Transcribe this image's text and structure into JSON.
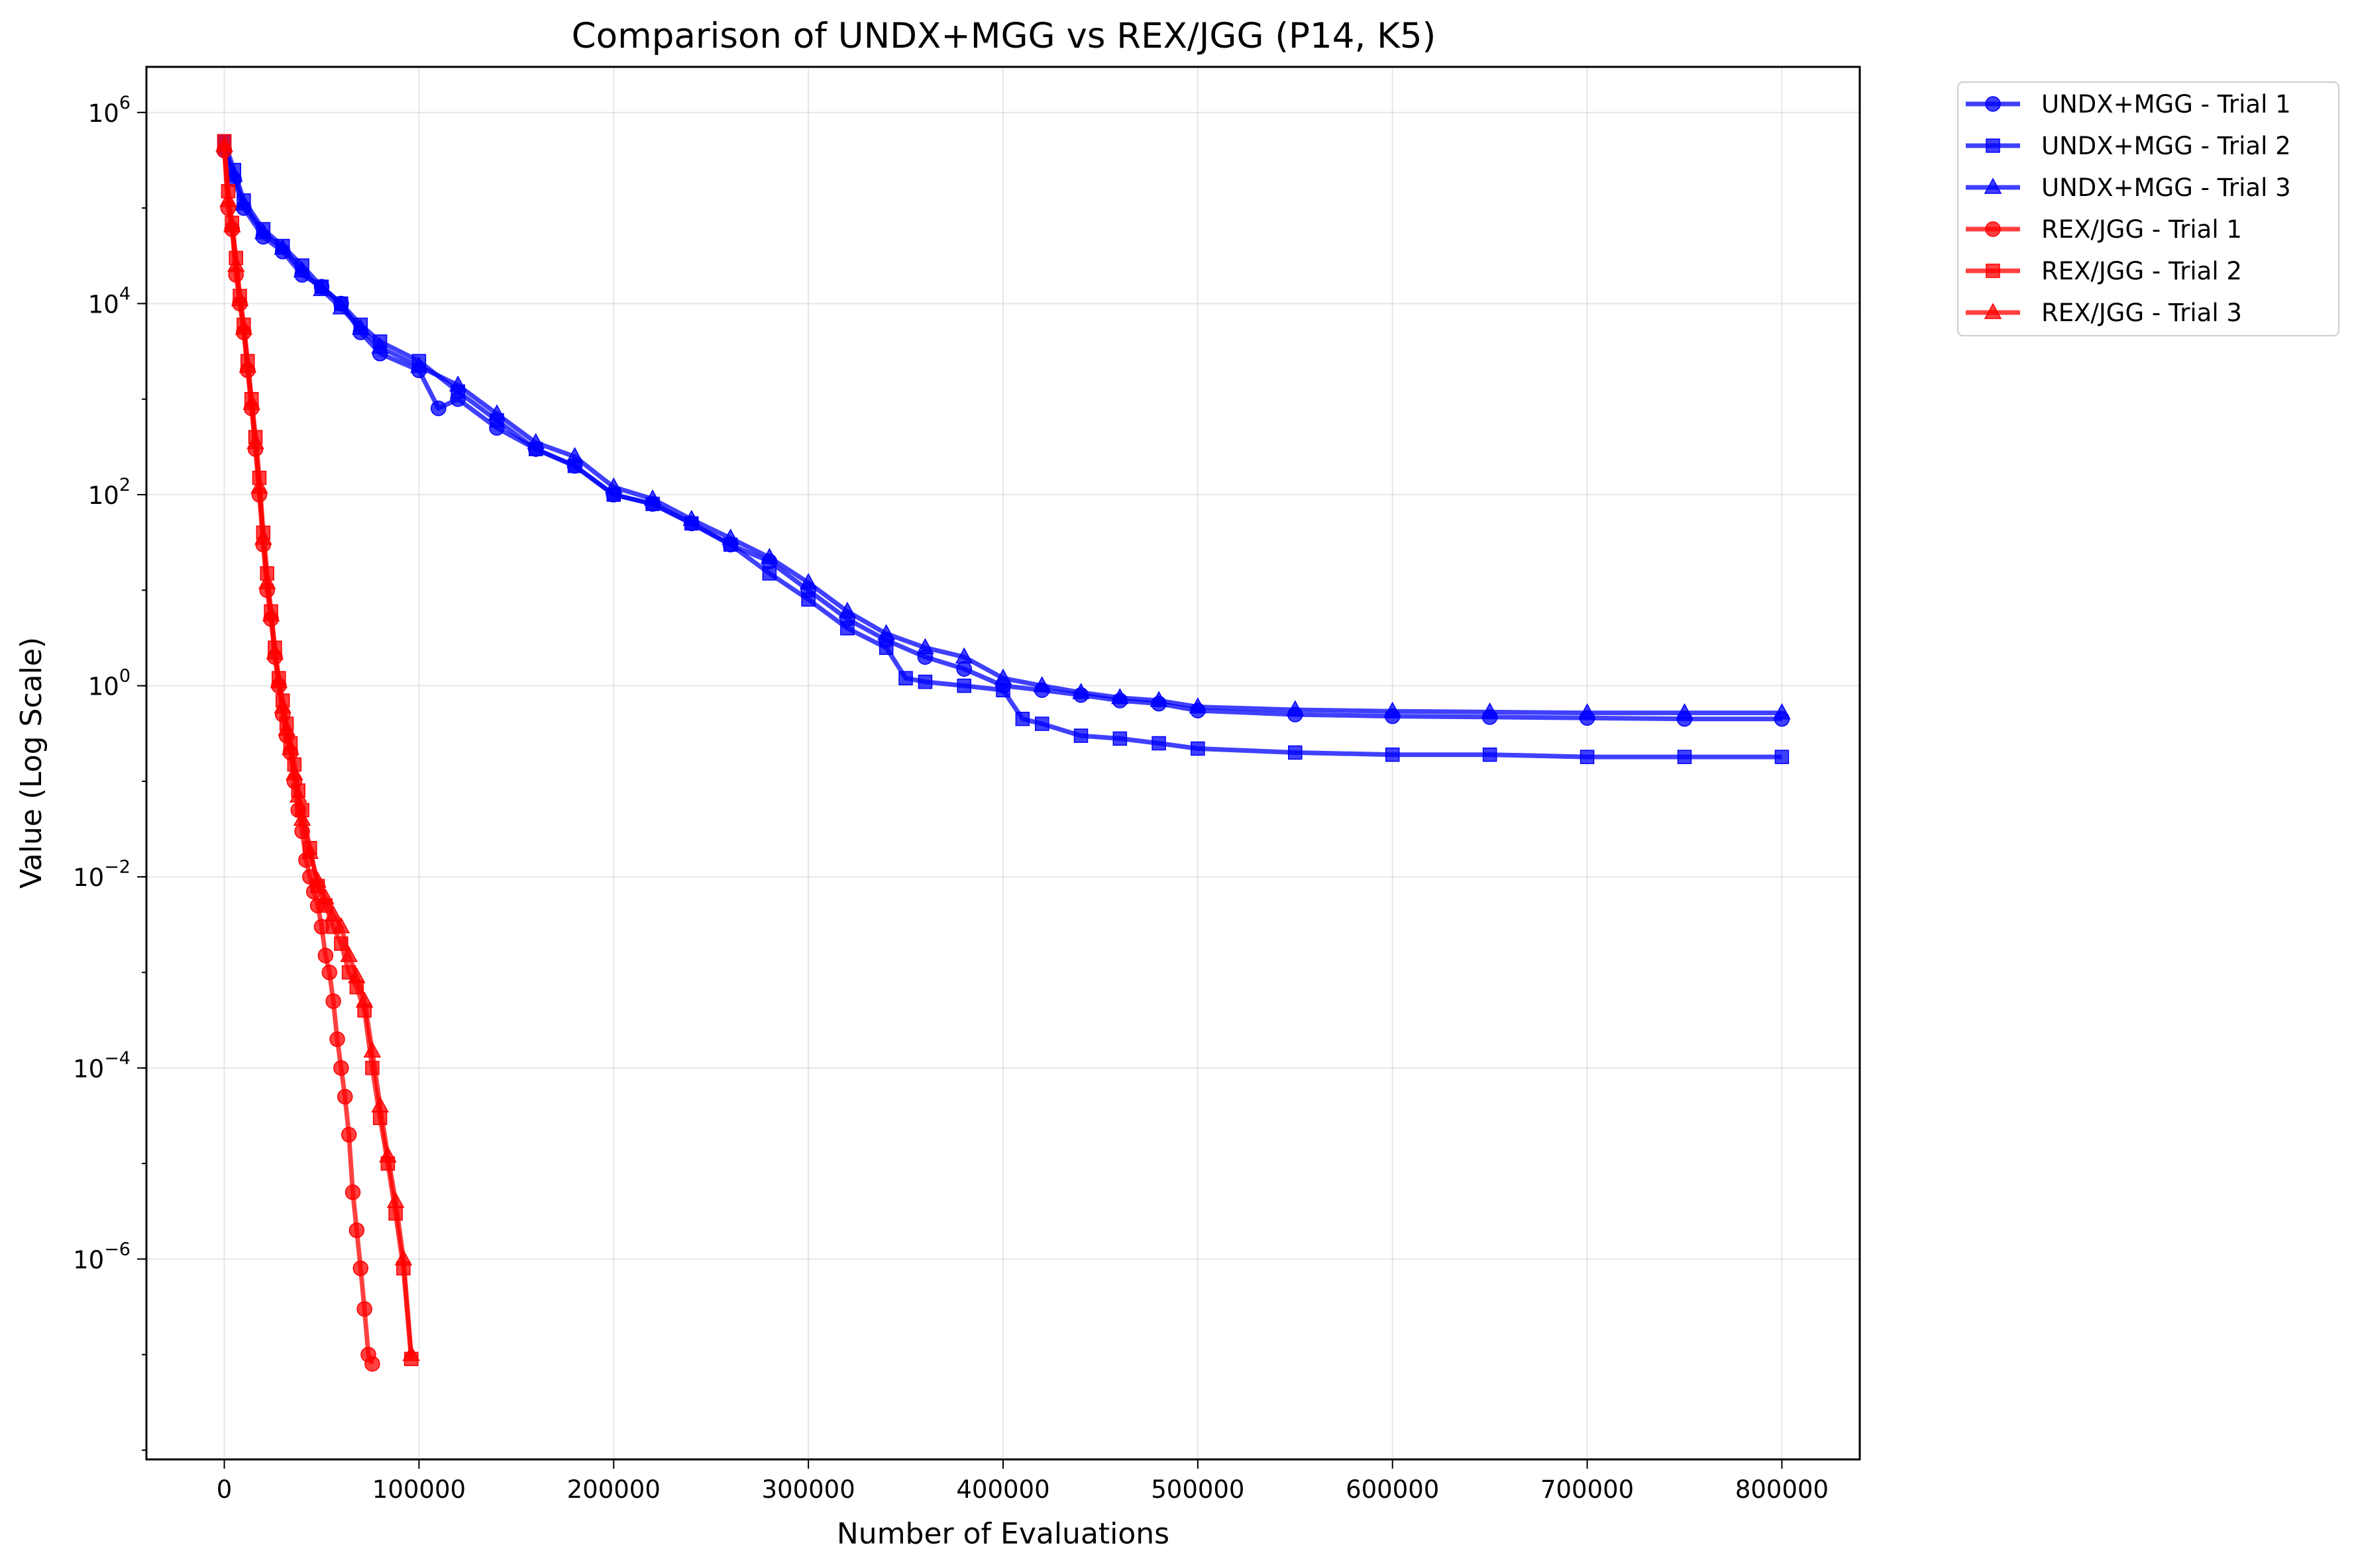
{
  "chart_data": {
    "type": "line",
    "title": "Comparison of UNDX+MGG vs REX/JGG (P14, K5)",
    "xlabel": "Number of Evaluations",
    "ylabel": "Value (Log Scale)",
    "xlim": [
      -40000,
      840000
    ],
    "ylim": [
      8e-09,
      3000000.0
    ],
    "yscale": "log",
    "grid": true,
    "legend_position": "outside-top-right",
    "x_ticks": [
      0,
      100000,
      200000,
      300000,
      400000,
      500000,
      600000,
      700000,
      800000
    ],
    "y_ticks": [
      {
        "value": 1000000.0,
        "base": "10",
        "exp": "6"
      },
      {
        "value": 10000.0,
        "base": "10",
        "exp": "4"
      },
      {
        "value": 100.0,
        "base": "10",
        "exp": "2"
      },
      {
        "value": 1,
        "base": "10",
        "exp": "0"
      },
      {
        "value": 0.01,
        "base": "10",
        "exp": "−2"
      },
      {
        "value": 0.0001,
        "base": "10",
        "exp": "−4"
      },
      {
        "value": 1e-06,
        "base": "10",
        "exp": "−6"
      }
    ],
    "series": [
      {
        "name": "UNDX+MGG - Trial 1",
        "color": "#0000ff",
        "marker": "circle",
        "x": [
          0,
          5000,
          10000,
          20000,
          30000,
          40000,
          50000,
          60000,
          70000,
          80000,
          100000,
          110000,
          120000,
          140000,
          160000,
          180000,
          200000,
          220000,
          240000,
          260000,
          280000,
          300000,
          320000,
          340000,
          360000,
          380000,
          400000,
          420000,
          440000,
          460000,
          480000,
          500000,
          550000,
          600000,
          650000,
          700000,
          750000,
          800000
        ],
        "y": [
          400000,
          200000,
          100000,
          50000,
          35000,
          20000,
          15000,
          10000,
          5000,
          3000,
          2000,
          800,
          1000,
          500,
          300,
          200,
          100,
          80,
          50,
          30,
          20,
          10,
          5,
          3,
          2,
          1.5,
          1,
          0.9,
          0.8,
          0.7,
          0.65,
          0.55,
          0.5,
          0.48,
          0.47,
          0.46,
          0.45,
          0.45
        ]
      },
      {
        "name": "UNDX+MGG - Trial 2",
        "color": "#0000ff",
        "marker": "square",
        "x": [
          0,
          5000,
          10000,
          20000,
          30000,
          40000,
          50000,
          60000,
          70000,
          80000,
          100000,
          120000,
          140000,
          160000,
          180000,
          200000,
          220000,
          240000,
          260000,
          280000,
          300000,
          320000,
          340000,
          350000,
          360000,
          380000,
          400000,
          410000,
          420000,
          440000,
          460000,
          480000,
          500000,
          550000,
          600000,
          650000,
          700000,
          750000,
          800000
        ],
        "y": [
          500000,
          250000,
          120000,
          60000,
          40000,
          25000,
          15000,
          10000,
          6000,
          4000,
          2500,
          1200,
          600,
          300,
          200,
          100,
          80,
          50,
          30,
          15,
          8,
          4,
          2.5,
          1.2,
          1.1,
          1.0,
          0.9,
          0.45,
          0.4,
          0.3,
          0.28,
          0.25,
          0.22,
          0.2,
          0.19,
          0.19,
          0.18,
          0.18,
          0.18
        ]
      },
      {
        "name": "UNDX+MGG - Trial 3",
        "color": "#0000ff",
        "marker": "triangle",
        "x": [
          0,
          5000,
          10000,
          20000,
          30000,
          40000,
          50000,
          60000,
          70000,
          80000,
          100000,
          120000,
          140000,
          160000,
          180000,
          200000,
          220000,
          240000,
          260000,
          280000,
          300000,
          320000,
          340000,
          360000,
          380000,
          400000,
          420000,
          440000,
          460000,
          480000,
          500000,
          550000,
          600000,
          650000,
          700000,
          750000,
          800000
        ],
        "y": [
          450000,
          220000,
          110000,
          55000,
          38000,
          22000,
          14000,
          9000,
          5500,
          3500,
          2200,
          1400,
          700,
          350,
          250,
          120,
          90,
          55,
          35,
          22,
          12,
          6,
          3.5,
          2.5,
          2.0,
          1.2,
          1.0,
          0.85,
          0.75,
          0.7,
          0.6,
          0.56,
          0.54,
          0.53,
          0.52,
          0.52,
          0.52
        ]
      },
      {
        "name": "REX/JGG - Trial 1",
        "color": "#ff0000",
        "marker": "circle",
        "x": [
          0,
          2000,
          4000,
          6000,
          8000,
          10000,
          12000,
          14000,
          16000,
          18000,
          20000,
          22000,
          24000,
          26000,
          28000,
          30000,
          32000,
          34000,
          36000,
          38000,
          40000,
          42000,
          44000,
          46000,
          48000,
          50000,
          52000,
          54000,
          56000,
          58000,
          60000,
          62000,
          64000,
          66000,
          68000,
          70000,
          72000,
          74000,
          76000
        ],
        "y": [
          400000,
          100000,
          60000,
          20000,
          10000,
          5000,
          2000,
          800,
          300,
          100,
          30,
          10,
          5,
          2,
          1,
          0.5,
          0.3,
          0.2,
          0.1,
          0.05,
          0.03,
          0.015,
          0.01,
          0.007,
          0.005,
          0.003,
          0.0015,
          0.001,
          0.0005,
          0.0002,
          0.0001,
          5e-05,
          2e-05,
          5e-06,
          2e-06,
          8e-07,
          3e-07,
          1e-07,
          8e-08
        ]
      },
      {
        "name": "REX/JGG - Trial 2",
        "color": "#ff0000",
        "marker": "square",
        "x": [
          0,
          2000,
          4000,
          6000,
          8000,
          10000,
          12000,
          14000,
          16000,
          18000,
          20000,
          22000,
          24000,
          26000,
          28000,
          30000,
          32000,
          34000,
          36000,
          38000,
          40000,
          44000,
          48000,
          52000,
          56000,
          60000,
          64000,
          68000,
          72000,
          76000,
          80000,
          84000,
          88000,
          92000,
          96000
        ],
        "y": [
          500000,
          150000,
          70000,
          30000,
          12000,
          6000,
          2500,
          1000,
          400,
          150,
          40,
          15,
          6,
          2.5,
          1.2,
          0.7,
          0.4,
          0.25,
          0.15,
          0.08,
          0.05,
          0.02,
          0.008,
          0.005,
          0.003,
          0.002,
          0.001,
          0.0007,
          0.0004,
          0.0001,
          3e-05,
          1e-05,
          3e-06,
          8e-07,
          9e-08
        ]
      },
      {
        "name": "REX/JGG - Trial 3",
        "color": "#ff0000",
        "marker": "triangle",
        "x": [
          0,
          2000,
          4000,
          6000,
          8000,
          10000,
          12000,
          14000,
          16000,
          18000,
          20000,
          22000,
          24000,
          26000,
          28000,
          30000,
          32000,
          34000,
          36000,
          38000,
          40000,
          44000,
          48000,
          52000,
          56000,
          60000,
          64000,
          68000,
          72000,
          76000,
          80000,
          84000,
          88000,
          92000,
          96000
        ],
        "y": [
          450000,
          120000,
          65000,
          25000,
          11000,
          5500,
          2200,
          900,
          350,
          120,
          35,
          12,
          5.5,
          2.2,
          1.1,
          0.6,
          0.35,
          0.22,
          0.12,
          0.07,
          0.04,
          0.018,
          0.009,
          0.006,
          0.004,
          0.003,
          0.0015,
          0.0009,
          0.0005,
          0.00015,
          4e-05,
          1.2e-05,
          4e-06,
          1e-06,
          1e-07
        ]
      }
    ]
  }
}
